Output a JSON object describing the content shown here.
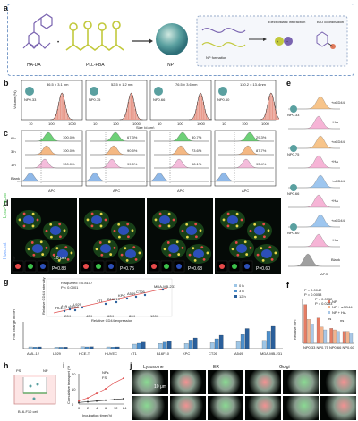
{
  "panel_labels": [
    "a",
    "b",
    "c",
    "d",
    "e",
    "f",
    "g",
    "h",
    "i",
    "j"
  ],
  "a": {
    "hada": "HA-DA",
    "pll": "PLL-PBA",
    "np": "NP",
    "np_formation": "NP formation",
    "electrostatic": "Electrostatic interaction",
    "bo": "B-O coordination"
  },
  "b": {
    "ylabel": "Volume (%)",
    "xlabel": "Size (d.nm)",
    "sizes": [
      "36.5 ± 3.1 nm",
      "52.5 ± 1.2 nm",
      "76.5 ± 3.6 nm",
      "130.2 ± 13.4 nm"
    ],
    "np_names": [
      "NP0.33",
      "NP0.75",
      "NP0.66",
      "NP0.60"
    ],
    "ticks": [
      "10",
      "100",
      "1000"
    ]
  },
  "c": {
    "rows": [
      "6 h",
      "3 h",
      "1 h",
      "Blank"
    ],
    "xlabel": "APC",
    "percents": [
      [
        "100.0%",
        "100.0%",
        "100.0%"
      ],
      [
        "67.3%",
        "90.5%",
        "99.5%"
      ],
      [
        "30.7%",
        "73.6%",
        "98.1%"
      ],
      [
        "29.3%",
        "87.7%",
        "93.4%"
      ]
    ]
  },
  "d": {
    "legend": [
      "Lyso-Tracker",
      "Hoechst"
    ],
    "pcc_prefix": "",
    "pcc": [
      "P=0.83",
      "P=0.75",
      "P=0.68",
      "P=0.60"
    ],
    "scale": "10 μm"
  },
  "e": {
    "labels": [
      "+αCD44",
      "+HA",
      "+αCD44",
      "+HA",
      "+αCD44",
      "+HA",
      "+αCD44",
      "+HA",
      "Blank"
    ],
    "np_names": [
      "NP0.33",
      "NP0.75",
      "NP0.66",
      "NP0.60"
    ],
    "xlabel": "APC"
  },
  "f": {
    "ylabel": "Relative MFI",
    "legend": [
      "NP",
      "NP + αCD44",
      "NP + HA"
    ],
    "pvals": [
      "P = 0.0042",
      "P = 0.0058",
      "P = 0.0352",
      "P = 0.0283",
      "ns",
      "ns"
    ],
    "categories": [
      "NP0.33",
      "NP0.75",
      "NP0.66",
      "NP0.60"
    ]
  },
  "chart_data": [
    {
      "type": "bar",
      "panel": "f",
      "categories": [
        "NP0.33",
        "NP0.75",
        "NP0.66",
        "NP0.60"
      ],
      "series": [
        {
          "name": "NP",
          "values": [
            2.6,
            1.7,
            1.0,
            0.8
          ]
        },
        {
          "name": "NP + αCD44",
          "values": [
            1.6,
            1.1,
            0.9,
            0.8
          ]
        },
        {
          "name": "NP + HA",
          "values": [
            1.3,
            0.9,
            0.8,
            0.7
          ]
        }
      ],
      "ylabel": "Relative MFI",
      "ylim": [
        0,
        3
      ]
    },
    {
      "type": "bar",
      "panel": "g",
      "categories": [
        "AML-12",
        "L929",
        "HCE-T",
        "HUVEC",
        "4T1",
        "B16F10",
        "KPC",
        "CT26",
        "A549",
        "MDA-MB-231"
      ],
      "series": [
        {
          "name": "0 h",
          "values": [
            1.2,
            1.1,
            1.3,
            1.2,
            3.0,
            3.5,
            3.4,
            4.0,
            4.6,
            5.5
          ]
        },
        {
          "name": "3 h",
          "values": [
            1.1,
            1.0,
            1.2,
            1.1,
            3.6,
            4.3,
            5.8,
            6.6,
            9.5,
            11.8
          ]
        },
        {
          "name": "12 h",
          "values": [
            1.2,
            1.1,
            1.3,
            1.2,
            4.3,
            5.2,
            7.2,
            9.0,
            13.5,
            15.0
          ]
        }
      ],
      "ylabel": "Fold change in MFI",
      "ylim": [
        0,
        18
      ],
      "legend": "top-right"
    },
    {
      "type": "line",
      "panel": "i",
      "x": [
        1,
        2,
        4,
        6,
        12,
        24
      ],
      "series": [
        {
          "name": "NPs",
          "values": [
            2,
            4,
            7,
            10,
            14,
            17
          ]
        },
        {
          "name": "FS",
          "values": [
            1,
            1.5,
            2,
            2.5,
            3,
            3.5
          ]
        }
      ],
      "xlabel": "Incubation time (h)",
      "ylabel": "Cumulative transport (%)",
      "ylim": [
        0,
        20
      ]
    }
  ],
  "g": {
    "ylabel": "Fold change in MFI",
    "legend": [
      "0 h",
      "3 h",
      "12 h"
    ],
    "inset_r": "R squared = 0.8107",
    "inset_p": "P < 0.0001",
    "inset_xlabel": "Relative CD44 expression",
    "inset_xticks": [
      "20K",
      "40K",
      "60K",
      "80K",
      "100K"
    ],
    "inset_points": [
      "MDA-MB-231",
      "CT26",
      "A549",
      "KPC",
      "B16F10",
      "4T1",
      "AML-12",
      "HCE-T",
      "HUVEC",
      "L929"
    ],
    "inset_ylabel": "Relative CD44 intensity"
  },
  "h": {
    "ps": "PS",
    "np": "NP",
    "cell": "B16-F10 cell"
  },
  "i": {
    "yticks": [
      "20",
      "10",
      "0"
    ],
    "xticks": [
      "0",
      "2",
      "4",
      "6",
      "12",
      "24"
    ]
  },
  "j": {
    "cols": [
      "Lysosome",
      "ER",
      "Golgi"
    ],
    "scale": "10 μm"
  },
  "colors": {
    "dashed_border": "#7a9cc9",
    "hada": "#7a64b0",
    "pll": "#c2c93c",
    "np": "#5aa0a0",
    "histo_fill": "#e89a8c",
    "fit_line": "#222222",
    "green": "#3cc04a",
    "orange": "#f0a05a",
    "blue": "#6aa0e0",
    "pink": "#f0a5cf",
    "gray": "#7a7a7a",
    "f_bars": [
      "#e67c63",
      "#f3b38d",
      "#a9c7e6"
    ],
    "g_bars": [
      "#9ec6e6",
      "#4d8fcc",
      "#2a5f9b"
    ],
    "red_line": "#e05050"
  }
}
